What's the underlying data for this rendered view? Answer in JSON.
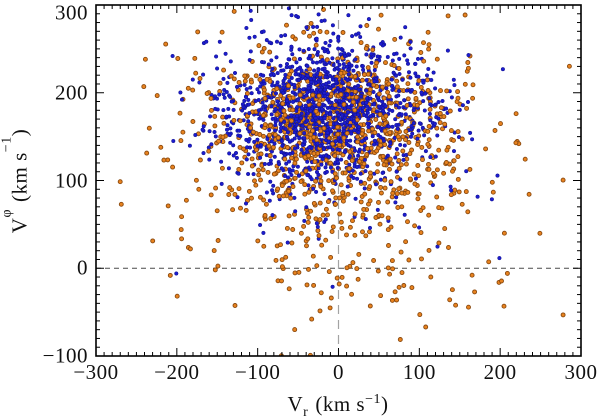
{
  "figure": {
    "background": "#ffffff",
    "frame_color": "#000000",
    "text_color": "#111111"
  },
  "chart_data": {
    "type": "scatter",
    "title": "",
    "xlabel": {
      "base": "V",
      "sub": "r",
      "units_pre": "(km s",
      "sup": "−1",
      "units_post": ")"
    },
    "ylabel": {
      "base": "V",
      "sub": "φ",
      "units_pre": "(km s",
      "sup": "−1",
      "units_post": ")"
    },
    "xlim": [
      -300,
      300
    ],
    "ylim": [
      -100,
      300
    ],
    "x_ticks": [
      -300,
      -200,
      -100,
      0,
      100,
      200,
      300
    ],
    "x_tick_labels": [
      "−300",
      "−200",
      "−100",
      "0",
      "100",
      "200",
      "300"
    ],
    "y_ticks": [
      300,
      200,
      100,
      0,
      -100
    ],
    "y_tick_labels": [
      "300",
      "200",
      "100",
      "0",
      "−100"
    ],
    "x_minor_step": 10,
    "y_minor_step": 10,
    "grid": false,
    "legend": "none",
    "reference_lines": [
      {
        "name": "vphi-zero-line",
        "orientation": "horizontal",
        "value": 0,
        "style": "dashed",
        "color": "#4a4a4a",
        "dash": [
          5,
          4
        ],
        "width": 1
      },
      {
        "name": "vr-zero-line",
        "orientation": "vertical",
        "value": 0,
        "style": "dashed",
        "color": "#a3a3a3",
        "dash": [
          9,
          6
        ],
        "width": 1.2
      }
    ],
    "series": [
      {
        "name": "blue-sample",
        "marker": "filled-circle",
        "fill": "#1c1ccd",
        "edge": "#10108a",
        "edge_width": 0.5,
        "radius_px": 1.8,
        "count": 1510,
        "components": [
          {
            "count": 1450,
            "mean": [
              -15,
              180
            ],
            "sigma": [
              62,
              40
            ]
          },
          {
            "count": 60,
            "mean": [
              -10,
              90
            ],
            "sigma": [
              95,
              55
            ]
          }
        ]
      },
      {
        "name": "orange-sample",
        "marker": "ringed-circle",
        "fill": "#e8821e",
        "edge": "#8a4a10",
        "edge_width": 0.9,
        "radius_px": 2.0,
        "count": 1170,
        "components": [
          {
            "count": 850,
            "mean": [
              -5,
              165
            ],
            "sigma": [
              78,
              48
            ]
          },
          {
            "count": 320,
            "mean": [
              5,
              70
            ],
            "sigma": [
              105,
              75
            ]
          }
        ]
      }
    ],
    "random_seed": 20240642
  }
}
